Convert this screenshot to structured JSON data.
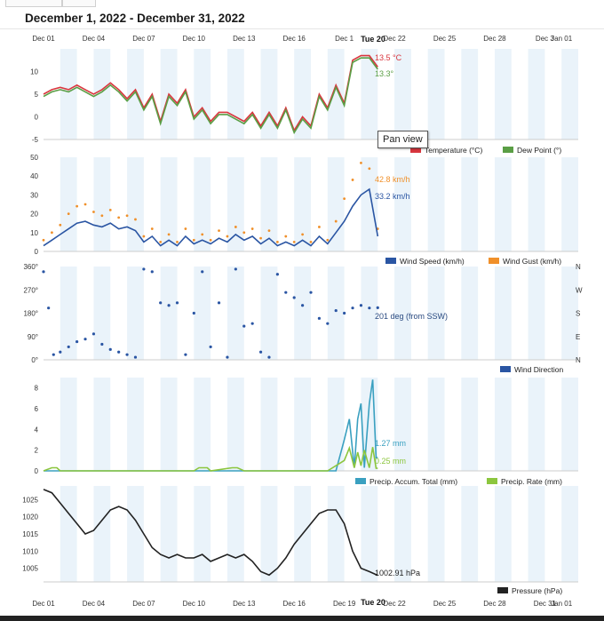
{
  "header": {
    "title": "December 1, 2022 - December 31, 2022"
  },
  "tooltip": {
    "text": "Pan view"
  },
  "colors": {
    "temp": "#d9363e",
    "dew": "#5a9e45",
    "speed": "#2a55a3",
    "gust": "#f0902a",
    "dir": "#2a55a3",
    "accum": "#3aa0c0",
    "rate": "#8cc63e",
    "pressure": "#222222",
    "band": "#eaf3fa"
  },
  "chart_data": [
    {
      "type": "line",
      "id": "temperature",
      "x_tick_labels": [
        "Dec 01",
        "Dec 04",
        "Dec 07",
        "Dec 10",
        "Dec 13",
        "Dec 16",
        "Dec 19",
        "Dec 22",
        "Dec 25",
        "Dec 28",
        "Dec 31",
        "Jan 01"
      ],
      "top_tick_labels": [
        "Dec 01",
        "Dec 04",
        "Dec 07",
        "Dec 10",
        "Dec 13",
        "Dec 16",
        "Dec 1",
        "Dec 22",
        "Dec 25",
        "Dec 28",
        "Dec 3",
        "Jan 01"
      ],
      "ylim": [
        -5,
        15
      ],
      "yticks": [
        10,
        5,
        0,
        -5
      ],
      "series": [
        {
          "name": "Temperature (°C)",
          "color": "#d9363e",
          "x": [
            1,
            1.5,
            2,
            2.5,
            3,
            3.5,
            4,
            4.5,
            5,
            5.5,
            6,
            6.5,
            7,
            7.5,
            8,
            8.5,
            9,
            9.5,
            10,
            10.5,
            11,
            11.5,
            12,
            12.5,
            13,
            13.5,
            14,
            14.5,
            15,
            15.5,
            16,
            16.5,
            17,
            17.5,
            18,
            18.5,
            19,
            19.5,
            20,
            20.5,
            21
          ],
          "y": [
            5,
            6,
            6.5,
            6,
            7,
            6,
            5,
            6,
            7.5,
            6,
            4,
            6,
            2,
            5,
            -1,
            5,
            3,
            6,
            0,
            2,
            -1,
            1,
            1,
            0,
            -1,
            1,
            -2,
            1,
            -2,
            2,
            -3,
            0,
            -2,
            5,
            2,
            7,
            3,
            12.5,
            13.5,
            13.5,
            11
          ]
        },
        {
          "name": "Dew Point (°)",
          "color": "#5a9e45",
          "x": [
            1,
            1.5,
            2,
            2.5,
            3,
            3.5,
            4,
            4.5,
            5,
            5.5,
            6,
            6.5,
            7,
            7.5,
            8,
            8.5,
            9,
            9.5,
            10,
            10.5,
            11,
            11.5,
            12,
            12.5,
            13,
            13.5,
            14,
            14.5,
            15,
            15.5,
            16,
            16.5,
            17,
            17.5,
            18,
            18.5,
            19,
            19.5,
            20,
            20.5,
            21
          ],
          "y": [
            4.5,
            5.5,
            6,
            5.5,
            6.5,
            5.5,
            4.5,
            5.5,
            7,
            5.5,
            3.5,
            5.5,
            1.5,
            4.5,
            -1.5,
            4.5,
            2.5,
            5.5,
            -0.5,
            1.5,
            -1.5,
            0.5,
            0.5,
            -0.5,
            -1.5,
            0.5,
            -2.5,
            0.5,
            -2.5,
            1.5,
            -3.5,
            -0.5,
            -2.5,
            4.5,
            1.5,
            6.5,
            2.5,
            12,
            13,
            13,
            10.5
          ]
        }
      ],
      "annotations": [
        "13.5 °C",
        "13.3°",
        "Tue 20"
      ]
    },
    {
      "type": "line",
      "id": "wind",
      "ylim": [
        0,
        50
      ],
      "yticks": [
        50,
        40,
        30,
        20,
        10,
        0
      ],
      "series": [
        {
          "name": "Wind Speed (km/h)",
          "color": "#2a55a3",
          "x": [
            1,
            1.5,
            2,
            2.5,
            3,
            3.5,
            4,
            4.5,
            5,
            5.5,
            6,
            6.5,
            7,
            7.5,
            8,
            8.5,
            9,
            9.5,
            10,
            10.5,
            11,
            11.5,
            12,
            12.5,
            13,
            13.5,
            14,
            14.5,
            15,
            15.5,
            16,
            16.5,
            17,
            17.5,
            18,
            18.5,
            19,
            19.5,
            20,
            20.5,
            21
          ],
          "y": [
            3,
            6,
            9,
            12,
            15,
            16,
            14,
            13,
            15,
            12,
            13,
            11,
            5,
            8,
            3,
            6,
            3,
            8,
            4,
            6,
            4,
            7,
            5,
            9,
            6,
            8,
            4,
            7,
            3,
            5,
            3,
            6,
            3,
            8,
            4,
            10,
            16,
            24,
            30,
            33,
            8
          ]
        },
        {
          "name": "Wind Gust (km/h)",
          "color": "#f0902a",
          "x": [
            1,
            1.5,
            2,
            2.5,
            3,
            3.5,
            4,
            4.5,
            5,
            5.5,
            6,
            6.5,
            7,
            7.5,
            8,
            8.5,
            9,
            9.5,
            10,
            10.5,
            11,
            11.5,
            12,
            12.5,
            13,
            13.5,
            14,
            14.5,
            15,
            15.5,
            16,
            16.5,
            17,
            17.5,
            18,
            18.5,
            19,
            19.5,
            20,
            20.5,
            21
          ],
          "y": [
            6,
            10,
            14,
            20,
            24,
            25,
            21,
            19,
            22,
            18,
            19,
            17,
            8,
            12,
            5,
            9,
            5,
            12,
            6,
            9,
            6,
            11,
            8,
            13,
            10,
            12,
            7,
            11,
            5,
            8,
            5,
            9,
            5,
            13,
            6,
            16,
            28,
            38,
            47,
            44,
            12
          ]
        }
      ],
      "annotations": [
        "42.8 km/h",
        "33.2 km/h"
      ]
    },
    {
      "type": "scatter",
      "id": "direction",
      "ylim": [
        0,
        360
      ],
      "ytick_labels": [
        "360°",
        "270°",
        "180°",
        "90°",
        "0°"
      ],
      "right_labels": [
        "N",
        "W",
        "S",
        "E",
        "N"
      ],
      "series": [
        {
          "name": "Wind Direction",
          "color": "#2a55a3",
          "x": [
            1,
            1.3,
            1.6,
            2,
            2.5,
            3,
            3.5,
            4,
            4.5,
            5,
            5.5,
            6,
            6.5,
            7,
            7.5,
            8,
            8.5,
            9,
            9.5,
            10,
            10.5,
            11,
            11.5,
            12,
            12.5,
            13,
            13.5,
            14,
            14.5,
            15,
            15.5,
            16,
            16.5,
            17,
            17.5,
            18,
            18.5,
            19,
            19.5,
            20,
            20.5,
            21
          ],
          "y": [
            340,
            200,
            20,
            30,
            50,
            70,
            80,
            100,
            60,
            40,
            30,
            20,
            10,
            350,
            340,
            220,
            210,
            220,
            20,
            180,
            340,
            50,
            220,
            10,
            350,
            130,
            140,
            30,
            10,
            330,
            260,
            240,
            210,
            260,
            160,
            140,
            190,
            180,
            200,
            210,
            200,
            201
          ]
        }
      ],
      "annotations": [
        "201 deg (from SSW)"
      ]
    },
    {
      "type": "line",
      "id": "precip",
      "ylim": [
        0,
        9
      ],
      "yticks": [
        8,
        6,
        4,
        2,
        0
      ],
      "series": [
        {
          "name": "Precip. Accum. Total (mm)",
          "color": "#3aa0c0",
          "x": [
            1,
            2,
            3,
            4,
            5,
            6,
            7,
            8,
            9,
            10,
            11,
            12,
            13,
            14,
            15,
            16,
            17,
            18,
            18.5,
            19,
            19.3,
            19.6,
            19.8,
            20,
            20.2,
            20.5,
            20.7,
            20.9,
            21
          ],
          "y": [
            0,
            0,
            0,
            0,
            0,
            0,
            0,
            0,
            0,
            0,
            0,
            0,
            0,
            0,
            0,
            0,
            0,
            0,
            0,
            3,
            5,
            0.3,
            5,
            6.5,
            0.3,
            6.5,
            8.8,
            1.27,
            1.27
          ]
        },
        {
          "name": "Precip. Rate (mm)",
          "color": "#8cc63e",
          "x": [
            1,
            1.5,
            1.8,
            2,
            10,
            10.3,
            10.8,
            11,
            12.3,
            12.6,
            13,
            18,
            19,
            19.3,
            19.6,
            19.8,
            20,
            20.2,
            20.5,
            20.7,
            20.9,
            21
          ],
          "y": [
            0,
            0.3,
            0.3,
            0,
            0,
            0.3,
            0.3,
            0,
            0.3,
            0.3,
            0,
            0,
            1,
            2.2,
            0.3,
            1.8,
            0.5,
            2,
            0.3,
            2.3,
            0.25,
            0.25
          ]
        }
      ],
      "annotations": [
        "1.27 mm",
        "0.25 mm"
      ]
    },
    {
      "type": "line",
      "id": "pressure",
      "ylim": [
        1001,
        1029
      ],
      "yticks": [
        1025,
        1020,
        1015,
        1010,
        1005
      ],
      "x_tick_labels": [
        "Dec 01",
        "Dec 04",
        "Dec 07",
        "Dec 10",
        "Dec 13",
        "Dec 16",
        "Dec 19",
        "Dec 22",
        "Dec 25",
        "Dec 28",
        "Dec 31",
        "Jan 01"
      ],
      "series": [
        {
          "name": "Pressure (hPa)",
          "color": "#222222",
          "x": [
            1,
            1.5,
            2,
            2.5,
            3,
            3.5,
            4,
            4.5,
            5,
            5.5,
            6,
            6.5,
            7,
            7.5,
            8,
            8.5,
            9,
            9.5,
            10,
            10.5,
            11,
            11.5,
            12,
            12.5,
            13,
            13.5,
            14,
            14.5,
            15,
            15.5,
            16,
            16.5,
            17,
            17.5,
            18,
            18.5,
            19,
            19.5,
            20,
            20.5,
            21
          ],
          "y": [
            1028,
            1027,
            1024,
            1021,
            1018,
            1015,
            1016,
            1019,
            1022,
            1023,
            1022,
            1019,
            1015,
            1011,
            1009,
            1008,
            1009,
            1008,
            1008,
            1009,
            1007,
            1008,
            1009,
            1008,
            1009,
            1007,
            1004,
            1003,
            1005,
            1008,
            1012,
            1015,
            1018,
            1021,
            1022,
            1022,
            1018,
            1010,
            1005,
            1004,
            1002.91
          ]
        }
      ],
      "annotations": [
        "1002.91 hPa",
        "Tue 20"
      ]
    }
  ]
}
